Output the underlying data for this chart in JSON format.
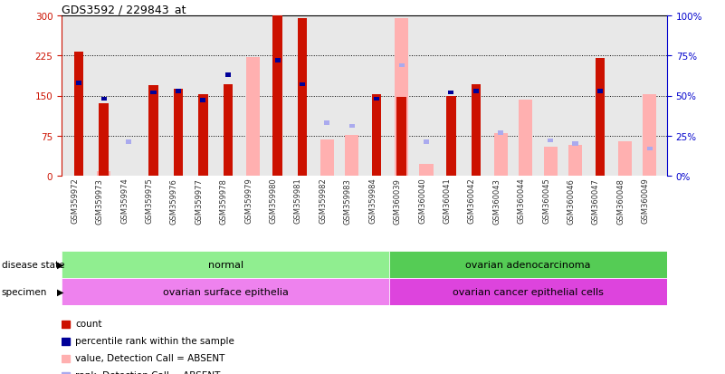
{
  "title": "GDS3592 / 229843_at",
  "samples": [
    "GSM359972",
    "GSM359973",
    "GSM359974",
    "GSM359975",
    "GSM359976",
    "GSM359977",
    "GSM359978",
    "GSM359979",
    "GSM359980",
    "GSM359981",
    "GSM359982",
    "GSM359983",
    "GSM359984",
    "GSM360039",
    "GSM360040",
    "GSM360041",
    "GSM360042",
    "GSM360043",
    "GSM360044",
    "GSM360045",
    "GSM360046",
    "GSM360047",
    "GSM360048",
    "GSM360049"
  ],
  "count": [
    232,
    135,
    0,
    170,
    163,
    153,
    172,
    0,
    300,
    295,
    0,
    0,
    152,
    148,
    0,
    150,
    172,
    0,
    0,
    0,
    0,
    220,
    0,
    0
  ],
  "percentile_rank": [
    58,
    48,
    0,
    52,
    53,
    47,
    63,
    0,
    72,
    57,
    0,
    0,
    48,
    0,
    0,
    52,
    53,
    0,
    0,
    0,
    0,
    53,
    0,
    0
  ],
  "value_absent": [
    0,
    8,
    0,
    0,
    0,
    0,
    0,
    222,
    0,
    0,
    67,
    77,
    0,
    295,
    22,
    0,
    0,
    80,
    143,
    55,
    57,
    0,
    65,
    153
  ],
  "rank_absent": [
    0,
    0,
    21,
    0,
    0,
    0,
    0,
    0,
    0,
    0,
    33,
    31,
    0,
    69,
    21,
    0,
    0,
    27,
    0,
    22,
    20,
    0,
    0,
    17
  ],
  "disease_groups": [
    {
      "label": "normal",
      "start": 0,
      "end": 13,
      "color": "#90ee90"
    },
    {
      "label": "ovarian adenocarcinoma",
      "start": 13,
      "end": 24,
      "color": "#55cc55"
    }
  ],
  "specimen_groups": [
    {
      "label": "ovarian surface epithelia",
      "start": 0,
      "end": 13,
      "color": "#ee82ee"
    },
    {
      "label": "ovarian cancer epithelial cells",
      "start": 13,
      "end": 24,
      "color": "#dd44dd"
    }
  ],
  "ylim_left": [
    0,
    300
  ],
  "ylim_right": [
    0,
    100
  ],
  "yticks_left": [
    0,
    75,
    150,
    225,
    300
  ],
  "yticks_right": [
    0,
    25,
    50,
    75,
    100
  ],
  "bar_color_count": "#cc1100",
  "bar_color_percentile": "#000099",
  "bar_color_value_absent": "#ffb0b0",
  "bar_color_rank_absent": "#aaaaee",
  "grid_color": "#000000",
  "bg_color": "#ffffff",
  "xticklabel_color": "#333333",
  "left_axis_color": "#cc1100",
  "right_axis_color": "#0000cc"
}
